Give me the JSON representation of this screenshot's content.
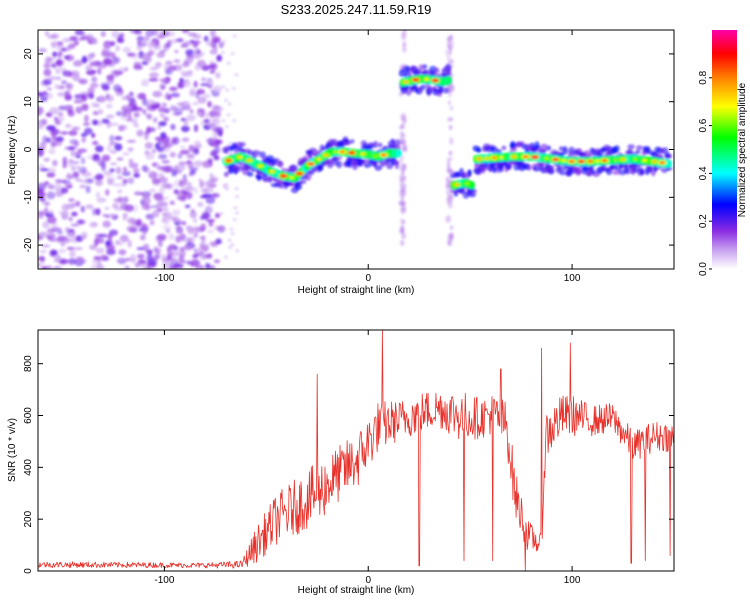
{
  "title": "S233.2025.247.11.59.R19",
  "chart_data": [
    {
      "type": "heatmap",
      "name": "spectrogram",
      "xlabel": "Height of straight line (km)",
      "ylabel": "Frequency (Hz)",
      "xlim": [
        -162,
        150
      ],
      "ylim": [
        -25,
        25
      ],
      "xticks": [
        -100,
        0,
        100
      ],
      "yticks": [
        -20,
        -10,
        0,
        10,
        20
      ],
      "colorbar": {
        "label": "Normalized spectral amplitude",
        "range": [
          0,
          1
        ],
        "ticks": [
          "0.0",
          "0.2",
          "0.4",
          "0.6",
          "0.8"
        ],
        "tick_values": [
          0.0,
          0.2,
          0.4,
          0.6,
          0.8
        ],
        "colors": [
          "#ffffff",
          "#8a2be2",
          "#0000ff",
          "#00ffff",
          "#00ff00",
          "#ffff00",
          "#ff8000",
          "#ff0000",
          "#ff00aa"
        ]
      },
      "noise_region": {
        "x_range": [
          -162,
          -72
        ],
        "y_range": [
          -25,
          25
        ]
      },
      "tracks": [
        {
          "x": [
            -70,
            -62,
            -55,
            -48,
            -42,
            -36,
            -30,
            -24,
            -18,
            -12,
            -6,
            0,
            5,
            10,
            15
          ],
          "f": [
            -2.5,
            -1.5,
            -3.0,
            -4.5,
            -5.5,
            -6.0,
            -3.5,
            -2.0,
            -0.5,
            -0.5,
            -0.8,
            -1.0,
            -1.5,
            -0.8,
            -0.8
          ]
        },
        {
          "x": [
            17,
            22,
            27,
            32,
            37,
            40
          ],
          "f": [
            14,
            14.5,
            14.8,
            14.5,
            14.2,
            14.5
          ]
        },
        {
          "x": [
            42,
            45,
            48,
            51
          ],
          "f": [
            -7.5,
            -7.2,
            -7.0,
            -7.5
          ]
        },
        {
          "x": [
            53,
            60,
            70,
            80,
            90,
            100,
            110,
            120,
            130,
            140,
            148
          ],
          "f": [
            -2,
            -1.8,
            -1.5,
            -1.5,
            -2.0,
            -2.5,
            -2.5,
            -2.2,
            -2.0,
            -2.5,
            -3.0
          ]
        }
      ],
      "streaks": [
        {
          "x": 17,
          "f_range": [
            -20,
            25
          ]
        },
        {
          "x": 40,
          "f_range": [
            -20,
            25
          ]
        }
      ]
    },
    {
      "type": "line",
      "name": "snr",
      "xlabel": "Height of straight line (km)",
      "ylabel": "SNR (10 * v/v)",
      "xlim": [
        -162,
        150
      ],
      "ylim": [
        0,
        930
      ],
      "xticks": [
        -100,
        0,
        100
      ],
      "yticks": [
        0,
        200,
        400,
        600,
        800
      ],
      "color": "#e8312a",
      "envelope": {
        "x": [
          -162,
          -80,
          -62,
          -55,
          -45,
          -35,
          -25,
          -15,
          -5,
          5,
          15,
          25,
          35,
          45,
          55,
          62,
          68,
          72,
          78,
          85,
          87,
          95,
          100,
          110,
          120,
          130,
          140,
          150
        ],
        "mean": [
          25,
          22,
          25,
          100,
          200,
          250,
          300,
          370,
          430,
          560,
          580,
          610,
          630,
          600,
          590,
          610,
          560,
          300,
          140,
          100,
          520,
          600,
          600,
          580,
          590,
          480,
          520,
          520
        ],
        "spread": [
          12,
          10,
          15,
          70,
          100,
          110,
          120,
          110,
          110,
          100,
          80,
          80,
          80,
          100,
          80,
          80,
          100,
          100,
          60,
          40,
          100,
          80,
          80,
          60,
          60,
          60,
          60,
          60
        ]
      },
      "spikes": [
        {
          "x": 7,
          "y": 930
        },
        {
          "x": -25,
          "y": 760
        },
        {
          "x": 85,
          "y": 860
        },
        {
          "x": 99,
          "y": 880
        },
        {
          "x": 65,
          "y": 780
        }
      ],
      "dips": [
        {
          "x": 25,
          "y": 20
        },
        {
          "x": 47,
          "y": 40
        },
        {
          "x": 61,
          "y": 40
        },
        {
          "x": 77,
          "y": 0
        },
        {
          "x": 129,
          "y": 30
        },
        {
          "x": 136,
          "y": 40
        },
        {
          "x": 148,
          "y": 60
        }
      ]
    }
  ]
}
